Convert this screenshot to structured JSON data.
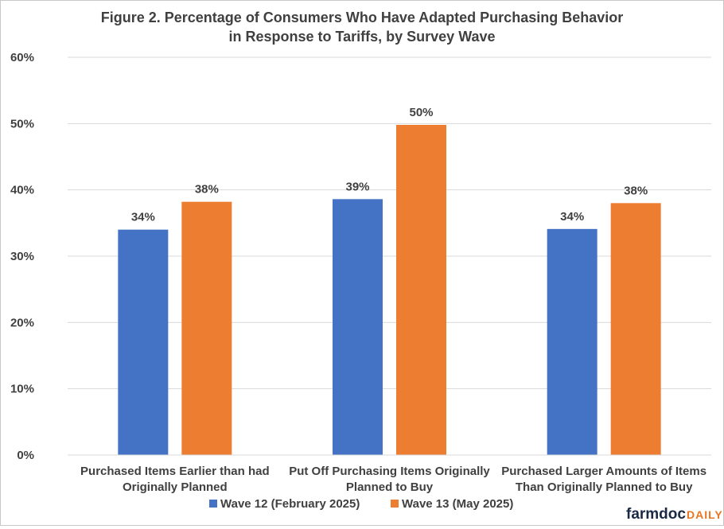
{
  "chart_data": {
    "type": "bar",
    "title_lines": [
      "Figure 2. Percentage of Consumers Who Have Adapted Purchasing Behavior",
      "in Response to Tariffs, by Survey Wave"
    ],
    "categories": [
      [
        "Purchased Items Earlier than had",
        "Originally Planned"
      ],
      [
        "Put Off Purchasing Items Originally",
        "Planned to Buy"
      ],
      [
        "Purchased Larger Amounts of Items",
        "Than Originally Planned to Buy"
      ]
    ],
    "series": [
      {
        "name": "Wave 12 (February 2025)",
        "color": "#4472c4",
        "values": [
          34,
          38.6,
          34.1
        ],
        "labels": [
          "34%",
          "39%",
          "34%"
        ]
      },
      {
        "name": "Wave 13 (May 2025)",
        "color": "#ed7d31",
        "values": [
          38.2,
          49.8,
          38
        ],
        "labels": [
          "38%",
          "50%",
          "38%"
        ]
      }
    ],
    "ylim": [
      0,
      60
    ],
    "yticks": [
      0,
      10,
      20,
      30,
      40,
      50,
      60
    ],
    "ytick_labels": [
      "0%",
      "10%",
      "20%",
      "30%",
      "40%",
      "50%",
      "60%"
    ],
    "grid": true,
    "legend_position": "bottom"
  },
  "brand": {
    "part1": "farmdoc",
    "part2": "DAILY"
  }
}
